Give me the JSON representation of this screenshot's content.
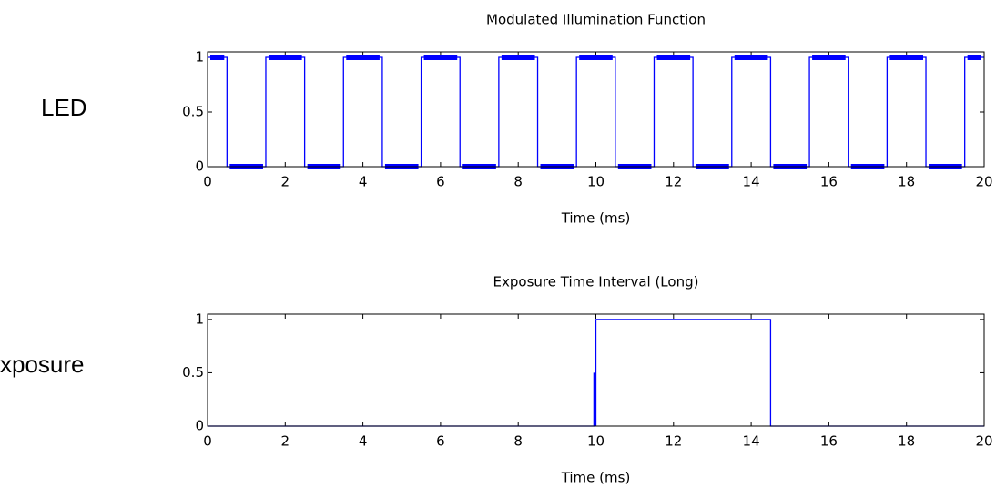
{
  "chart_data": [
    {
      "type": "line",
      "label": "LED",
      "title": "Modulated Illumination Function",
      "xlabel": "Time (ms)",
      "series": [
        {
          "color": "#0000ff",
          "marker": true,
          "x": [
            0,
            0.5,
            0.5,
            1.5,
            1.5,
            2.5,
            2.5,
            3.5,
            3.5,
            4.5,
            4.5,
            5.5,
            5.5,
            6.5,
            6.5,
            7.5,
            7.5,
            8.5,
            8.5,
            9.5,
            9.5,
            10.5,
            10.5,
            11.5,
            11.5,
            12.5,
            12.5,
            13.5,
            13.5,
            14.5,
            14.5,
            15.5,
            15.5,
            16.5,
            16.5,
            17.5,
            17.5,
            18.5,
            18.5,
            19.5,
            19.5,
            20
          ],
          "values": [
            1,
            1,
            0,
            0,
            1,
            1,
            0,
            0,
            1,
            1,
            0,
            0,
            1,
            1,
            0,
            0,
            1,
            1,
            0,
            0,
            1,
            1,
            0,
            0,
            1,
            1,
            0,
            0,
            1,
            1,
            0,
            0,
            1,
            1,
            0,
            0,
            1,
            1,
            0,
            0,
            1,
            1
          ]
        }
      ],
      "xlim": [
        0,
        20
      ],
      "xticks": [
        0,
        2,
        4,
        6,
        8,
        10,
        12,
        14,
        16,
        18,
        20
      ],
      "ylim": [
        0,
        1.05
      ],
      "yticks": [
        0,
        0.5,
        1
      ],
      "grid": false
    },
    {
      "type": "line",
      "label": "xposure",
      "title": "Exposure Time Interval (Long)",
      "xlabel": "Time (ms)",
      "series": [
        {
          "color": "#0000ff",
          "marker": false,
          "x": [
            0,
            9.95,
            9.95,
            10,
            10,
            14.5,
            14.5,
            20
          ],
          "values": [
            0,
            0,
            0.5,
            0,
            1,
            1,
            0,
            0
          ]
        }
      ],
      "xlim": [
        0,
        20
      ],
      "xticks": [
        0,
        2,
        4,
        6,
        8,
        10,
        12,
        14,
        16,
        18,
        20
      ],
      "ylim": [
        0,
        1.05
      ],
      "yticks": [
        0,
        0.5,
        1
      ],
      "grid": false
    }
  ]
}
